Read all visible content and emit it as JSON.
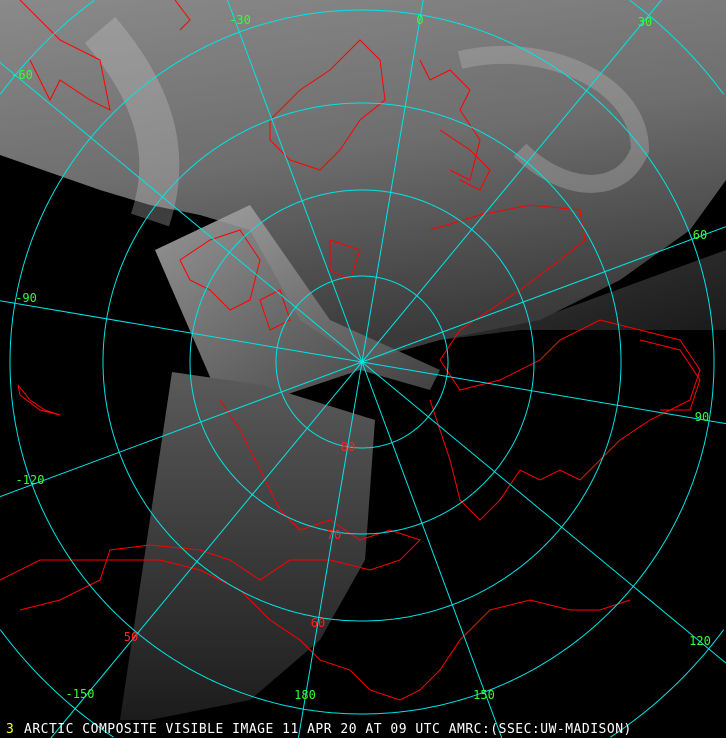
{
  "caption": {
    "frame_number": "3",
    "text": "ARCTIC COMPOSITE VISIBLE IMAGE 11 APR 20 AT 09 UTC AMRC:(SSEC:UW-MADISON)"
  },
  "map": {
    "projection": "polar-stereographic (north pole)",
    "longitude_labels": [
      "-30",
      "0",
      "30",
      "-60",
      "60",
      "-90",
      "90",
      "-120",
      "120",
      "-150",
      "150",
      "180"
    ],
    "latitude_labels": [
      "80",
      "70",
      "60",
      "50"
    ],
    "colors": {
      "background": "#000000",
      "graticule": "#00e5e5",
      "coastline": "#ff0000",
      "longitude_label": "#33ff33",
      "latitude_label": "#ff2020",
      "frame_number": "#ffff33",
      "caption": "#ffffff"
    }
  }
}
